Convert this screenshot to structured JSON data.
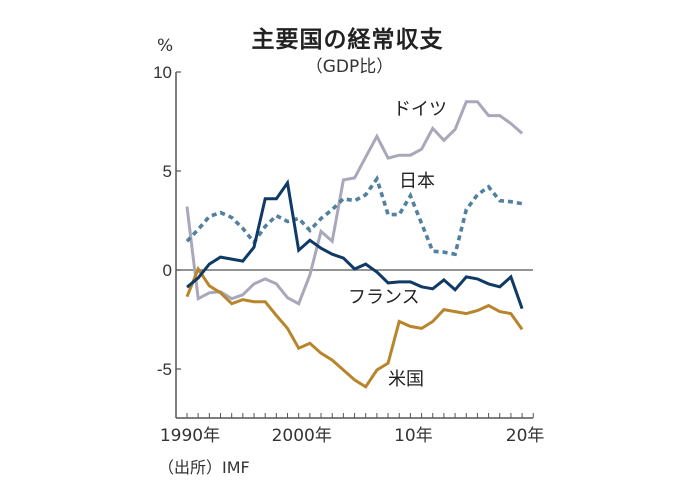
{
  "title": "主要国の経常収支",
  "subtitle": "（GDP比）",
  "unit": "%",
  "source": "（出所）IMF",
  "chart_data": {
    "type": "line",
    "title": "主要国の経常収支",
    "subtitle": "（GDP比）",
    "ylabel": "%",
    "xlabel": "",
    "ylim": [
      -7.5,
      10
    ],
    "xlim": [
      1989.7,
      2021.2
    ],
    "yticks": [
      10,
      5,
      0,
      -5
    ],
    "ytick_labels": [
      "10",
      "5",
      "0",
      "-5"
    ],
    "xticks": [
      1990,
      2000,
      2010,
      2020
    ],
    "xtick_labels": [
      "1990年",
      "2000年",
      "10年",
      "20年"
    ],
    "x": [
      1990,
      1991,
      1992,
      1993,
      1994,
      1995,
      1996,
      1997,
      1998,
      1999,
      2000,
      2001,
      2002,
      2003,
      2004,
      2005,
      2006,
      2007,
      2008,
      2009,
      2010,
      2011,
      2012,
      2013,
      2014,
      2015,
      2016,
      2017,
      2018,
      2019,
      2020
    ],
    "series": [
      {
        "name": "ドイツ",
        "color": "#a9a8bb",
        "style": "solid",
        "values": [
          3.2,
          -1.45,
          -1.15,
          -1.1,
          -1.45,
          -1.25,
          -0.7,
          -0.45,
          -0.7,
          -1.4,
          -1.7,
          -0.25,
          1.95,
          1.45,
          4.55,
          4.65,
          5.7,
          6.75,
          5.65,
          5.8,
          5.8,
          6.1,
          7.15,
          6.55,
          7.1,
          8.5,
          8.5,
          7.8,
          7.8,
          7.4,
          6.9
        ]
      },
      {
        "name": "日本",
        "color": "#52809f",
        "style": "dashed",
        "values": [
          1.45,
          2.05,
          2.7,
          2.9,
          2.65,
          2.1,
          1.4,
          2.2,
          2.75,
          2.45,
          2.6,
          2.0,
          2.6,
          3.05,
          3.6,
          3.5,
          3.8,
          4.6,
          2.8,
          2.8,
          3.75,
          2.35,
          0.95,
          0.9,
          0.8,
          3.05,
          3.8,
          4.2,
          3.5,
          3.45,
          3.35
        ]
      },
      {
        "name": "フランス",
        "color": "#0f3a66",
        "style": "solid",
        "values": [
          -0.87,
          -0.4,
          0.3,
          0.65,
          0.55,
          0.45,
          1.15,
          3.6,
          3.6,
          4.4,
          1.0,
          1.5,
          1.1,
          0.8,
          0.6,
          0.05,
          0.3,
          -0.1,
          -0.65,
          -0.6,
          -0.6,
          -0.85,
          -0.95,
          -0.5,
          -1.0,
          -0.35,
          -0.45,
          -0.7,
          -0.85,
          -0.35,
          -1.95
        ]
      },
      {
        "name": "米国",
        "color": "#b8852c",
        "style": "solid",
        "values": [
          -1.35,
          0.05,
          -0.8,
          -1.15,
          -1.7,
          -1.5,
          -1.6,
          -1.6,
          -2.3,
          -2.95,
          -3.95,
          -3.7,
          -4.2,
          -4.55,
          -5.05,
          -5.55,
          -5.9,
          -5.05,
          -4.7,
          -2.6,
          -2.85,
          -2.95,
          -2.6,
          -2.0,
          -2.1,
          -2.2,
          -2.05,
          -1.8,
          -2.1,
          -2.2,
          -3.0
        ]
      }
    ],
    "annotations": [
      "ドイツ",
      "日本",
      "フランス",
      "米国"
    ],
    "zero_line": true,
    "grid": false,
    "legend": "none"
  }
}
